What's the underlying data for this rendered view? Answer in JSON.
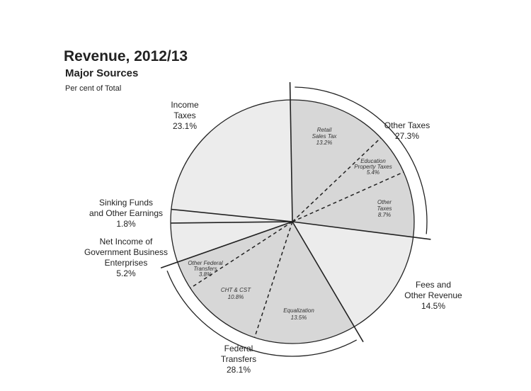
{
  "chart_data": {
    "type": "pie",
    "title": "Revenue, 2012/13",
    "subtitle": "Major Sources",
    "unit_label": "Per cent of Total",
    "slices": [
      {
        "group": "Other Taxes",
        "label": "Retail Sales Tax",
        "value": 13.2
      },
      {
        "group": "Other Taxes",
        "label": "Education Property Taxes",
        "value": 5.4
      },
      {
        "group": "Other Taxes",
        "label": "Other Taxes",
        "value": 8.7
      },
      {
        "group": "Fees and Other Revenue",
        "label": "Fees and Other Revenue",
        "value": 14.5
      },
      {
        "group": "Federal Transfers",
        "label": "Equalization",
        "value": 13.5
      },
      {
        "group": "Federal Transfers",
        "label": "CHT & CST",
        "value": 10.8
      },
      {
        "group": "Federal Transfers",
        "label": "Other Federal Transfers",
        "value": 3.8
      },
      {
        "group": "Net Income of Government Business Enterprises",
        "label": "Net Income of Government Business Enterprises",
        "value": 5.2
      },
      {
        "group": "Sinking Funds and Other Earnings",
        "label": "Sinking Funds and Other Earnings",
        "value": 1.8
      },
      {
        "group": "Income Taxes",
        "label": "Income Taxes",
        "value": 23.1
      }
    ],
    "group_labels": [
      {
        "lines": [
          "Other Taxes",
          "27.3%"
        ]
      },
      {
        "lines": [
          "Fees and",
          "Other Revenue",
          "14.5%"
        ]
      },
      {
        "lines": [
          "Federal",
          "Transfers",
          "28.1%"
        ]
      },
      {
        "lines": [
          "Net Income of",
          "Government Business",
          "Enterprises",
          "5.2%"
        ]
      },
      {
        "lines": [
          "Sinking Funds",
          "and Other Earnings",
          "1.8%"
        ]
      },
      {
        "lines": [
          "Income",
          "Taxes",
          "23.1%"
        ]
      }
    ],
    "inner_labels": [
      {
        "lines": [
          "Retail",
          "Sales Tax",
          "13.2%"
        ]
      },
      {
        "lines": [
          "Education",
          "Property Taxes",
          "5.4%"
        ]
      },
      {
        "lines": [
          "Other",
          "Taxes",
          "8.7%"
        ]
      },
      {
        "lines": [
          "Equalization",
          "13.5%"
        ]
      },
      {
        "lines": [
          "CHT & CST",
          "10.8%"
        ]
      },
      {
        "lines": [
          "Other Federal",
          "Transfers",
          "3.8%"
        ]
      }
    ],
    "colors": {
      "grouped": "#d7d7d7",
      "single": "#ececec",
      "line": "#222222"
    }
  }
}
